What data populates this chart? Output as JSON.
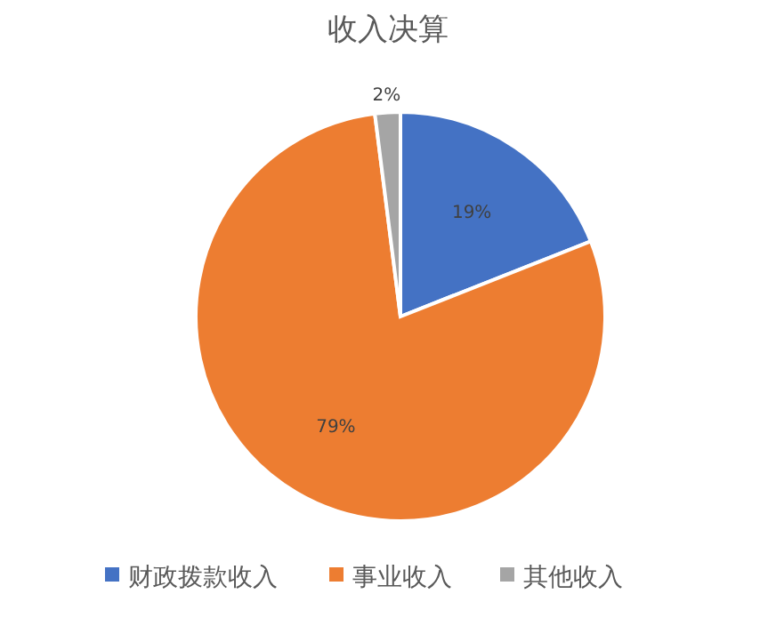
{
  "chart_data": {
    "type": "pie",
    "title": "收入决算",
    "categories": [
      "财政拨款收入",
      "事业收入",
      "其他收入"
    ],
    "values": [
      19,
      79,
      2
    ],
    "colors": [
      "#4472c4",
      "#ed7d31",
      "#a5a5a5"
    ],
    "value_labels": [
      "19%",
      "79%",
      "2%"
    ],
    "legend": "bottom"
  }
}
